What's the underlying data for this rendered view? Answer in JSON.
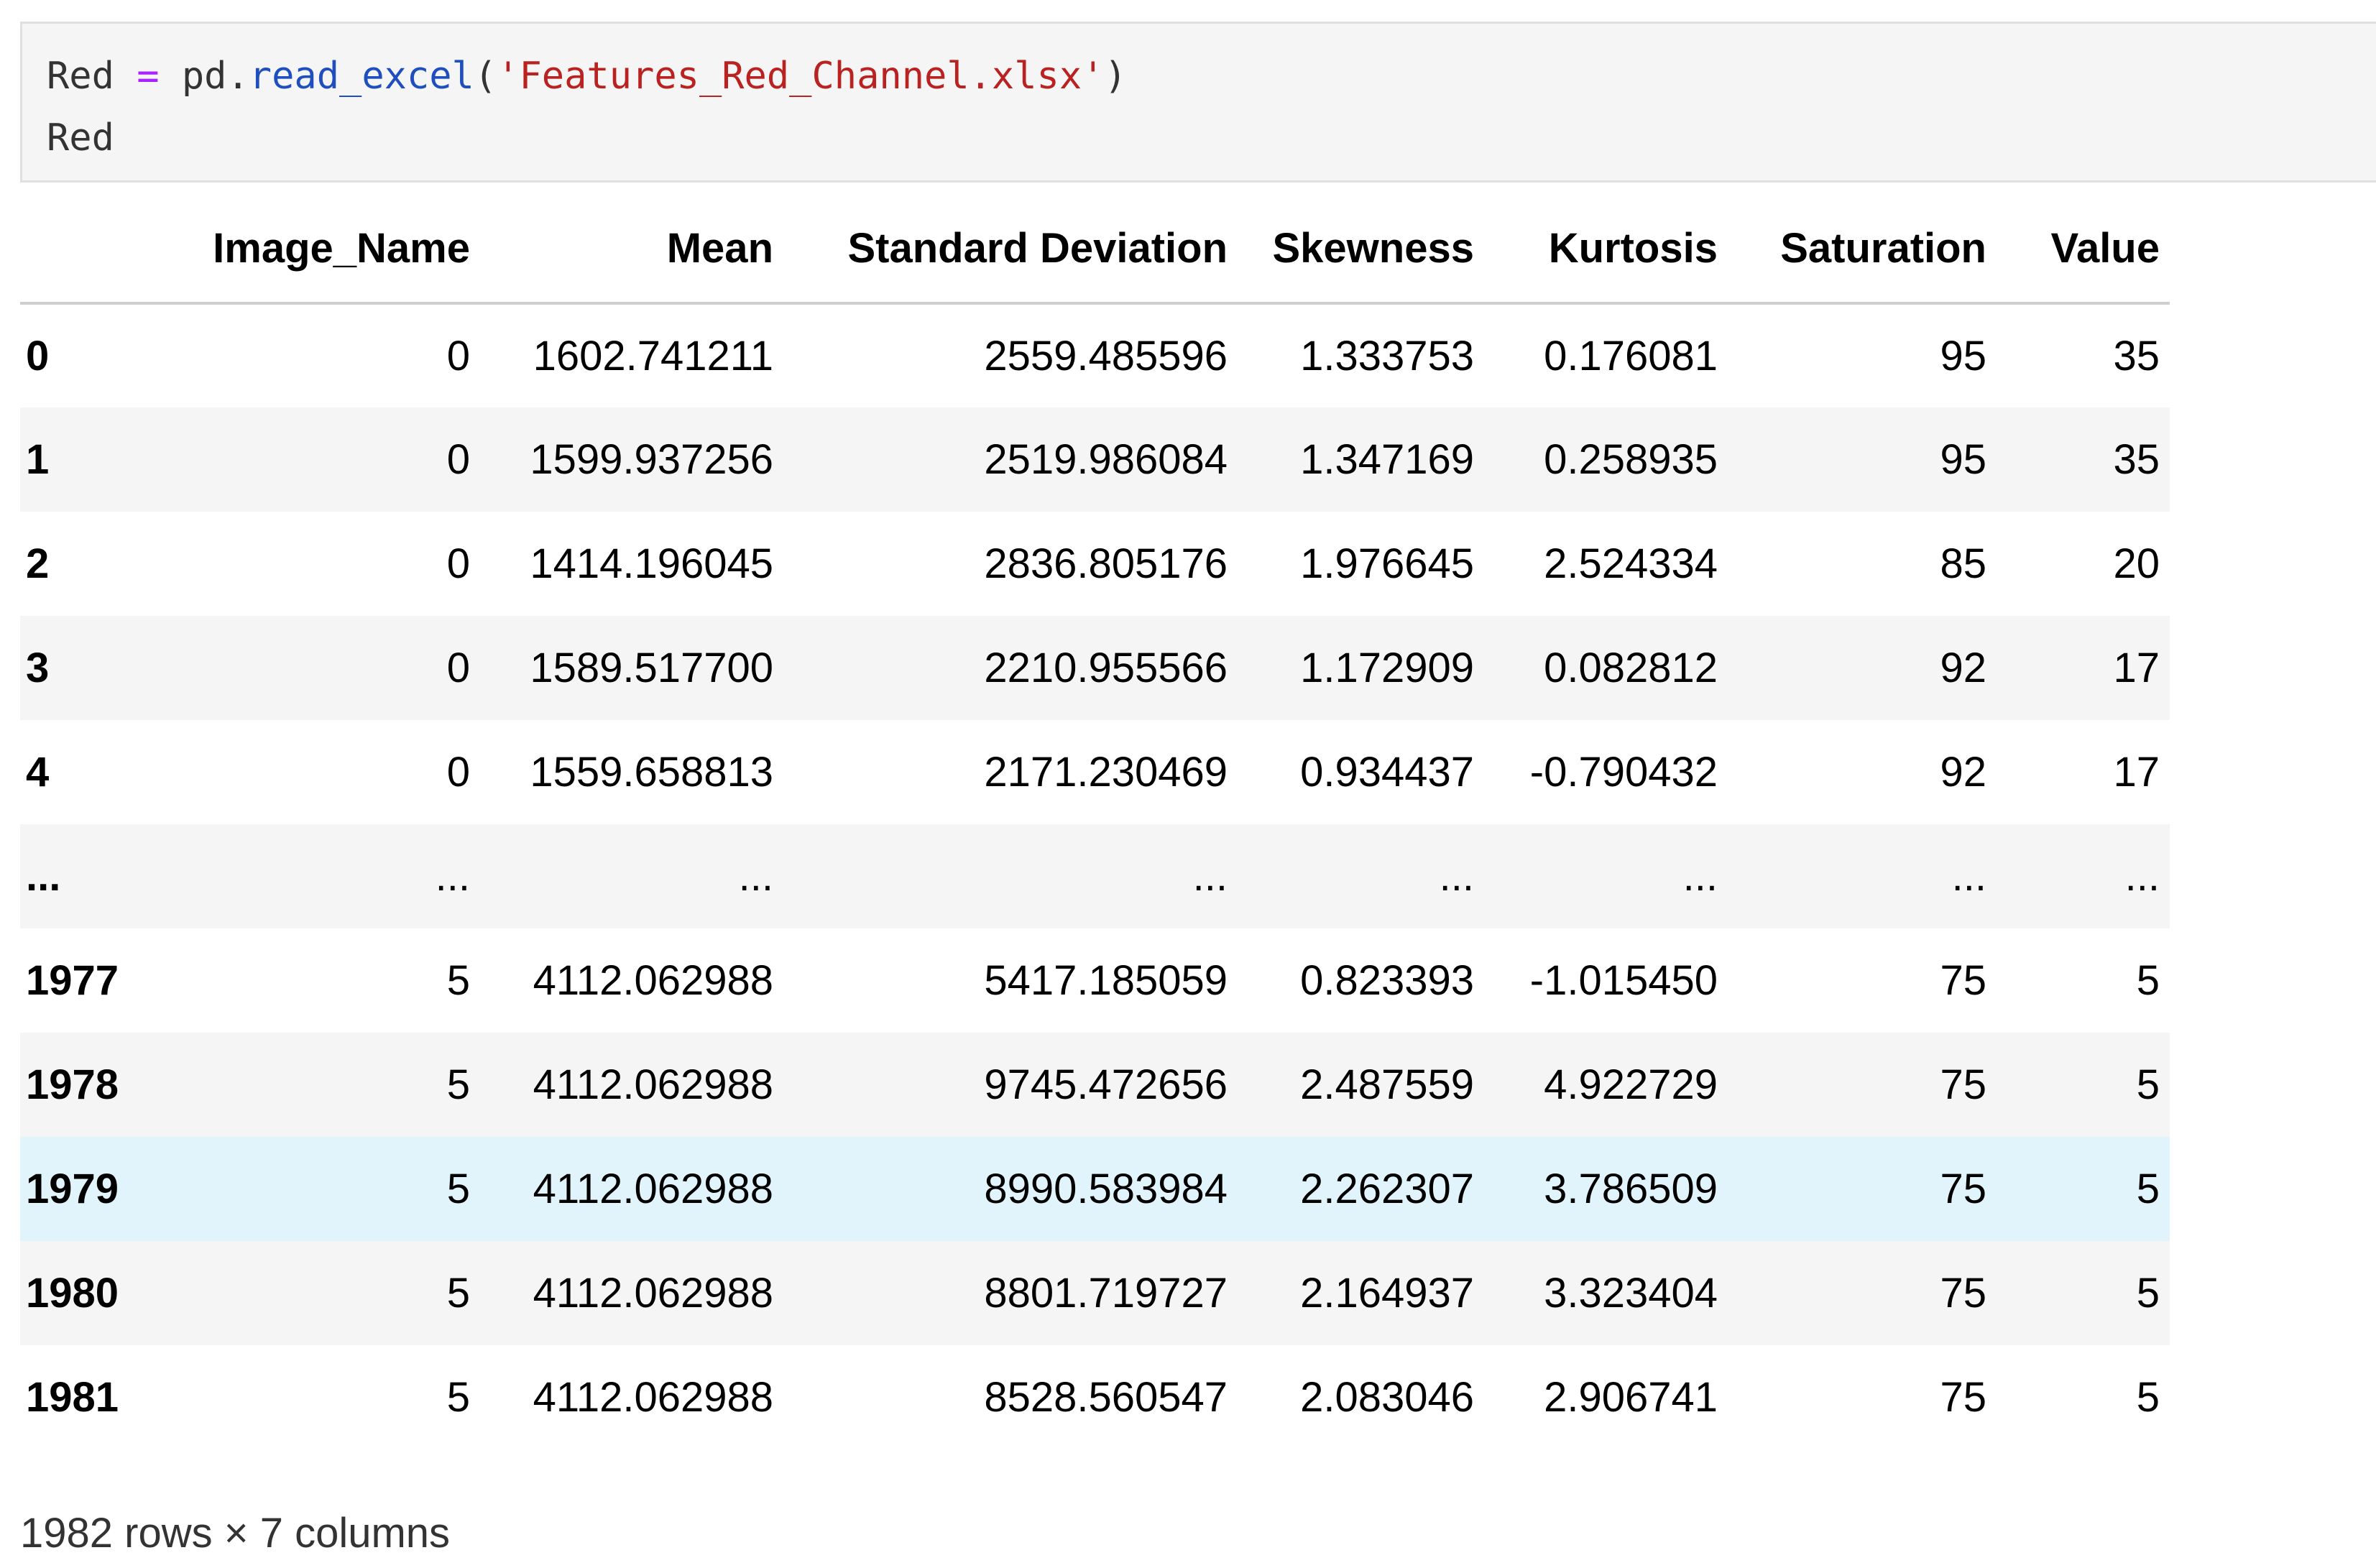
{
  "code": {
    "line1": [
      "Red",
      "=",
      "pd",
      ".",
      "read_excel",
      "(",
      "'Features_Red_Channel.xlsx'",
      ")"
    ],
    "line2": "Red"
  },
  "table": {
    "columns": [
      "Image_Name",
      "Mean",
      "Standard Deviation",
      "Skewness",
      "Kurtosis",
      "Saturation",
      "Value"
    ],
    "rows": [
      [
        "0",
        "0",
        "1602.741211",
        "2559.485596",
        "1.333753",
        "0.176081",
        "95",
        "35"
      ],
      [
        "1",
        "0",
        "1599.937256",
        "2519.986084",
        "1.347169",
        "0.258935",
        "95",
        "35"
      ],
      [
        "2",
        "0",
        "1414.196045",
        "2836.805176",
        "1.976645",
        "2.524334",
        "85",
        "20"
      ],
      [
        "3",
        "0",
        "1589.517700",
        "2210.955566",
        "1.172909",
        "0.082812",
        "92",
        "17"
      ],
      [
        "4",
        "0",
        "1559.658813",
        "2171.230469",
        "0.934437",
        "-0.790432",
        "92",
        "17"
      ],
      [
        "...",
        "...",
        "...",
        "...",
        "...",
        "...",
        "...",
        "..."
      ],
      [
        "1977",
        "5",
        "4112.062988",
        "5417.185059",
        "0.823393",
        "-1.015450",
        "75",
        "5"
      ],
      [
        "1978",
        "5",
        "4112.062988",
        "9745.472656",
        "2.487559",
        "4.922729",
        "75",
        "5"
      ],
      [
        "1979",
        "5",
        "4112.062988",
        "8990.583984",
        "2.262307",
        "3.786509",
        "75",
        "5"
      ],
      [
        "1980",
        "5",
        "4112.062988",
        "8801.719727",
        "2.164937",
        "3.323404",
        "75",
        "5"
      ],
      [
        "1981",
        "5",
        "4112.062988",
        "8528.560547",
        "2.083046",
        "2.906741",
        "75",
        "5"
      ]
    ]
  },
  "footer": "1982 rows × 7 columns"
}
